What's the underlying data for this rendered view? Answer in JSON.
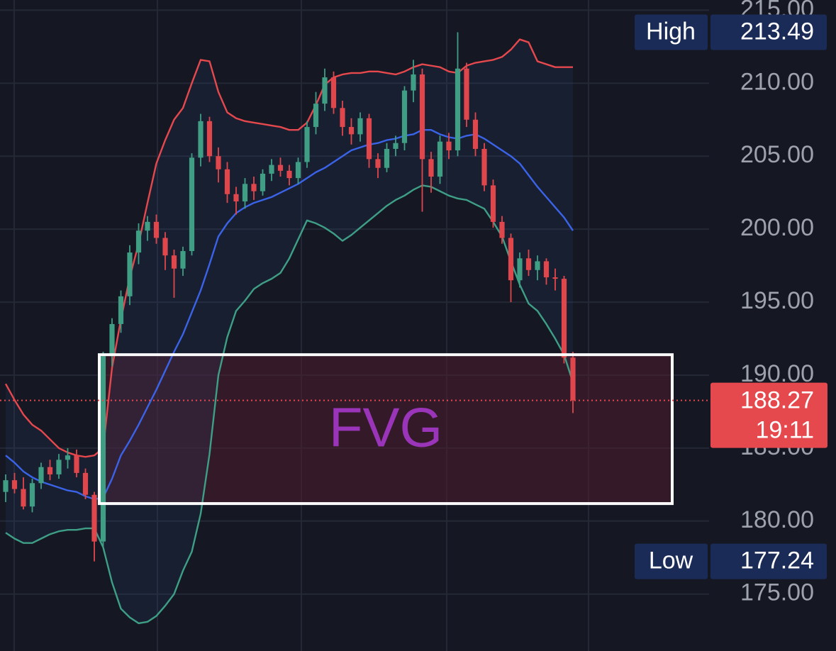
{
  "chart_data": {
    "type": "candlestick",
    "ylim": [
      171.1,
      215.7
    ],
    "yticks": [
      {
        "value": 175,
        "label": "175.00"
      },
      {
        "value": 180,
        "label": "180.00"
      },
      {
        "value": 185,
        "label": "185.00"
      },
      {
        "value": 190,
        "label": "190.00"
      },
      {
        "value": 195,
        "label": "195.00"
      },
      {
        "value": 200,
        "label": "200.00"
      },
      {
        "value": 205,
        "label": "205.00"
      },
      {
        "value": 210,
        "label": "210.00"
      },
      {
        "value": 215,
        "label": "215.00"
      }
    ],
    "grid": true,
    "up_color": "#3f9e84",
    "down_color": "#e0474c",
    "open": [
      182.0,
      182.8,
      182.2,
      181.0,
      182.6,
      183.7,
      183.2,
      184.2,
      184.5,
      183.3,
      181.8,
      178.6,
      191.3,
      193.5,
      195.4,
      198.4,
      199.9,
      200.5,
      199.4,
      198.2,
      197.3,
      198.5,
      204.9,
      207.4,
      205.0,
      204.1,
      202.4,
      201.9,
      203.1,
      202.6,
      203.8,
      204.4,
      204.0,
      203.5,
      204.6,
      207.0,
      208.6,
      210.4,
      208.3,
      207.0,
      206.5,
      207.6,
      204.8,
      204.2,
      205.5,
      205.9,
      209.5,
      210.6,
      204.8,
      203.6,
      206.0,
      205.4,
      211.0,
      207.5,
      205.5,
      203.0,
      200.5,
      199.4,
      196.5,
      198.0,
      197.2,
      197.8,
      196.7,
      196.6,
      191.2
    ],
    "high": [
      183.2,
      183.3,
      183.0,
      182.9,
      184.0,
      184.2,
      184.6,
      185.0,
      184.9,
      183.6,
      182.0,
      191.6,
      193.9,
      195.8,
      198.9,
      200.4,
      200.9,
      201.0,
      199.8,
      198.6,
      198.8,
      205.2,
      207.9,
      207.7,
      205.6,
      204.6,
      202.9,
      203.5,
      203.6,
      204.1,
      204.8,
      204.9,
      204.4,
      204.9,
      207.4,
      209.4,
      211.0,
      210.8,
      208.8,
      207.6,
      208.0,
      207.9,
      205.2,
      205.9,
      206.4,
      209.8,
      211.6,
      211.0,
      205.3,
      206.4,
      206.6,
      213.49,
      211.4,
      208.0,
      205.9,
      203.4,
      200.9,
      199.7,
      198.4,
      198.6,
      198.2,
      198.0,
      197.3,
      196.8,
      191.6
    ],
    "low": [
      181.3,
      181.9,
      180.8,
      180.6,
      182.2,
      182.8,
      182.9,
      183.6,
      183.0,
      181.5,
      177.24,
      178.2,
      190.6,
      192.9,
      194.8,
      197.6,
      199.2,
      199.0,
      197.2,
      195.3,
      196.8,
      198.2,
      204.3,
      204.6,
      203.2,
      201.8,
      201.0,
      201.4,
      202.0,
      202.3,
      203.3,
      203.6,
      203.0,
      203.1,
      204.2,
      206.5,
      208.1,
      207.9,
      206.4,
      205.8,
      206.0,
      204.2,
      203.5,
      203.9,
      205.0,
      205.4,
      208.7,
      201.2,
      202.5,
      203.1,
      204.8,
      205.0,
      207.0,
      205.0,
      202.6,
      200.1,
      199.0,
      195.0,
      196.0,
      196.8,
      196.5,
      196.2,
      195.8,
      190.8,
      187.4
    ],
    "close": [
      182.8,
      182.2,
      181.0,
      182.6,
      183.7,
      183.2,
      184.2,
      184.5,
      183.3,
      181.8,
      178.6,
      191.3,
      193.5,
      195.4,
      198.4,
      199.9,
      200.5,
      199.4,
      198.2,
      197.3,
      198.5,
      204.9,
      207.4,
      205.0,
      204.1,
      202.4,
      201.9,
      203.1,
      202.6,
      203.8,
      204.4,
      204.0,
      203.5,
      204.6,
      207.0,
      208.6,
      210.4,
      208.3,
      207.0,
      206.5,
      207.6,
      204.8,
      204.2,
      205.5,
      205.9,
      209.5,
      210.6,
      204.8,
      203.6,
      206.0,
      205.4,
      211.0,
      207.5,
      205.5,
      203.0,
      200.5,
      199.4,
      196.5,
      198.0,
      197.2,
      197.8,
      196.7,
      196.6,
      191.2,
      188.27
    ],
    "overlays": [
      {
        "color": "#e5484d",
        "values": [
          189.4,
          188.3,
          187.3,
          186.6,
          186.2,
          185.6,
          185.0,
          184.7,
          184.5,
          184.4,
          184.5,
          185.0,
          190.5,
          193.8,
          196.7,
          199.0,
          201.8,
          204.5,
          206.1,
          207.5,
          208.3,
          210.0,
          211.6,
          211.5,
          209.4,
          208.0,
          207.6,
          207.4,
          207.3,
          207.2,
          207.1,
          207.0,
          206.8,
          206.8,
          207.3,
          208.5,
          209.9,
          210.4,
          210.6,
          210.7,
          210.7,
          210.8,
          210.8,
          210.7,
          210.6,
          210.8,
          211.1,
          211.3,
          211.2,
          211.1,
          210.8,
          210.7,
          211.2,
          211.4,
          211.5,
          211.6,
          211.8,
          212.3,
          213.0,
          212.8,
          211.5,
          211.3,
          211.1,
          211.1,
          211.1
        ]
      },
      {
        "color": "#3b63e8",
        "values": [
          184.5,
          184.0,
          183.4,
          183.0,
          182.7,
          182.5,
          182.3,
          182.1,
          182.0,
          181.7,
          181.5,
          181.6,
          182.9,
          184.5,
          185.5,
          186.6,
          187.8,
          189.0,
          190.3,
          191.6,
          192.8,
          194.3,
          195.8,
          197.6,
          199.5,
          200.4,
          201.1,
          201.5,
          201.8,
          202.0,
          202.2,
          202.5,
          202.8,
          203.1,
          203.5,
          203.9,
          204.2,
          204.6,
          205.0,
          205.4,
          205.6,
          205.8,
          205.9,
          206.1,
          206.2,
          206.4,
          206.5,
          206.8,
          206.8,
          206.5,
          206.3,
          206.2,
          206.4,
          206.5,
          206.2,
          205.8,
          205.4,
          205.0,
          204.5,
          203.7,
          202.9,
          202.2,
          201.5,
          200.8,
          199.9
        ]
      },
      {
        "color": "#3e9f86",
        "values": [
          179.2,
          178.8,
          178.5,
          178.5,
          178.8,
          179.1,
          179.3,
          179.4,
          179.4,
          179.5,
          179.5,
          178.2,
          175.8,
          174.0,
          173.4,
          173.0,
          173.1,
          173.5,
          174.2,
          175.0,
          176.6,
          177.9,
          180.5,
          184.6,
          190.0,
          192.6,
          194.4,
          195.1,
          195.9,
          196.3,
          196.6,
          197.0,
          198.0,
          199.3,
          200.6,
          200.4,
          200.1,
          199.7,
          199.2,
          199.6,
          200.1,
          200.6,
          201.1,
          201.6,
          202.0,
          202.3,
          202.7,
          203.0,
          202.9,
          202.6,
          202.3,
          202.1,
          202.0,
          201.7,
          201.4,
          200.5,
          199.5,
          197.8,
          196.2,
          194.9,
          194.4,
          193.5,
          192.5,
          191.4,
          189.5
        ]
      }
    ],
    "band_fill": "rgba(48,86,150,0.13)",
    "zone": {
      "label": "FVG",
      "top": 191.4,
      "bottom": 181.2,
      "color": "#9a34b8"
    },
    "high_marker": {
      "label": "High",
      "value": 213.49
    },
    "low_marker": {
      "label": "Low",
      "value": 177.24
    },
    "last_price": {
      "value": 188.27,
      "countdown": "19:11",
      "color": "#e5484d"
    }
  }
}
